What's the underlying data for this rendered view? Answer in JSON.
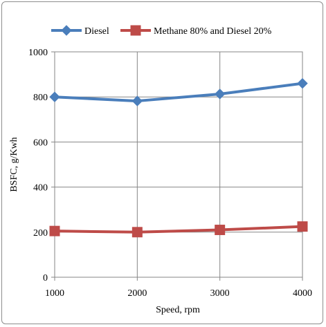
{
  "chart_data": {
    "type": "line",
    "title": "",
    "xlabel": "Speed, rpm",
    "ylabel": "BSFC, g/Kwh",
    "x": [
      1000,
      2000,
      3000,
      4000
    ],
    "xlim": [
      1000,
      4000
    ],
    "ylim": [
      0,
      1000
    ],
    "yticks": [
      0,
      200,
      400,
      600,
      800,
      1000
    ],
    "grid": true,
    "legend_position": "top",
    "series": [
      {
        "name": "Diesel",
        "values": [
          800,
          782,
          813,
          860
        ],
        "color": "#4a7ebb",
        "marker": "diamond"
      },
      {
        "name": "Methane 80% and Diesel 20%",
        "values": [
          205,
          200,
          210,
          225
        ],
        "color": "#be4b48",
        "marker": "square"
      }
    ]
  }
}
